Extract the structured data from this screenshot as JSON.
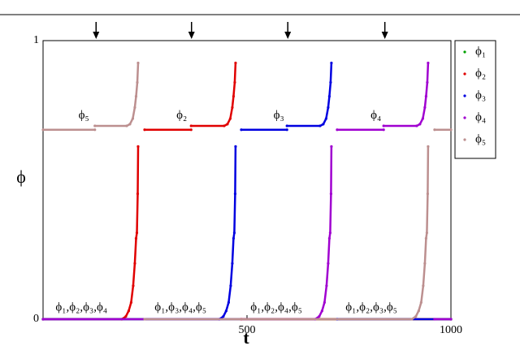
{
  "chart_data": {
    "type": "scatter",
    "xlabel": "t",
    "ylabel": "ϕ",
    "xlim": [
      0,
      1000
    ],
    "ylim": [
      0,
      1
    ],
    "xticks": [
      500,
      1000
    ],
    "yticks": [
      0,
      1
    ],
    "legend": "upper right outside",
    "arrows_x": [
      130,
      364,
      600,
      838
    ],
    "annotations": [
      {
        "text": "ϕ₅",
        "x": 100,
        "y": 0.73
      },
      {
        "text": "ϕ₂",
        "x": 340,
        "y": 0.73
      },
      {
        "text": "ϕ₃",
        "x": 578,
        "y": 0.73
      },
      {
        "text": "ϕ₄",
        "x": 816,
        "y": 0.73
      },
      {
        "text": "ϕ₁,ϕ₂,ϕ₃,ϕ₄",
        "x": 94,
        "y": 0.04
      },
      {
        "text": "ϕ₁,ϕ₃,ϕ₄,ϕ₅",
        "x": 337,
        "y": 0.04
      },
      {
        "text": "ϕ₁,ϕ₂,ϕ₄,ϕ₅",
        "x": 572,
        "y": 0.04
      },
      {
        "text": "ϕ₁,ϕ₂,ϕ₃,ϕ₅",
        "x": 805,
        "y": 0.04
      }
    ],
    "series": [
      {
        "name": "ϕ₁",
        "color": "#00a000",
        "x": [
          0,
          1000
        ],
        "values": [
          0,
          0
        ]
      },
      {
        "name": "ϕ₂",
        "color": "#e00000",
        "x": [
          0,
          193,
          203,
          210,
          216,
          221,
          225,
          228,
          230,
          232,
          233,
          240,
          249,
          363,
          363,
          363,
          444,
          452,
          459,
          464,
          467,
          470,
          472,
          480,
          486,
          1000
        ],
        "values": [
          0,
          0,
          0.01,
          0.03,
          0.06,
          0.12,
          0.2,
          0.29,
          0.31,
          0.45,
          0.62,
          null,
          0.68,
          0.68,
          null,
          0.694,
          0.694,
          0.7,
          0.72,
          0.76,
          0.8,
          0.85,
          0.92,
          null,
          0,
          0
        ]
      },
      {
        "name": "ϕ₃",
        "color": "#0000e0",
        "x": [
          0,
          432,
          442,
          449,
          455,
          460,
          464,
          467,
          469,
          471,
          472,
          480,
          486,
          598,
          598,
          598,
          679,
          687,
          694,
          699,
          702,
          705,
          707,
          715,
          721,
          1000
        ],
        "values": [
          0,
          0,
          0.01,
          0.03,
          0.06,
          0.12,
          0.2,
          0.29,
          0.31,
          0.45,
          0.62,
          null,
          0.68,
          0.68,
          null,
          0.694,
          0.694,
          0.7,
          0.72,
          0.76,
          0.8,
          0.85,
          0.92,
          null,
          0,
          0
        ]
      },
      {
        "name": "ϕ₄",
        "color": "#a000d0",
        "x": [
          0,
          667,
          677,
          684,
          690,
          695,
          699,
          702,
          704,
          706,
          707,
          715,
          721,
          835,
          835,
          835,
          916,
          924,
          931,
          936,
          939,
          942,
          944,
          952,
          960,
          1000
        ],
        "values": [
          0,
          0,
          0.01,
          0.03,
          0.06,
          0.12,
          0.2,
          0.29,
          0.31,
          0.45,
          0.62,
          null,
          0.68,
          0.68,
          null,
          0.694,
          0.694,
          0.7,
          0.72,
          0.76,
          0.8,
          0.85,
          0.92,
          null,
          0,
          0
        ]
      },
      {
        "name": "ϕ₅",
        "color": "#bc8f8f",
        "x": [
          0,
          127,
          127,
          127,
          205,
          213,
          220,
          225,
          228,
          231,
          233,
          240,
          249,
          904,
          914,
          921,
          927,
          932,
          936,
          939,
          941,
          943,
          944,
          952,
          960,
          1000
        ],
        "values": [
          0.68,
          0.68,
          null,
          0.694,
          0.694,
          0.7,
          0.72,
          0.76,
          0.8,
          0.85,
          0.92,
          null,
          0,
          0,
          0.01,
          0.03,
          0.06,
          0.12,
          0.2,
          0.29,
          0.31,
          0.45,
          0.62,
          null,
          0.68,
          0.68
        ]
      }
    ]
  }
}
